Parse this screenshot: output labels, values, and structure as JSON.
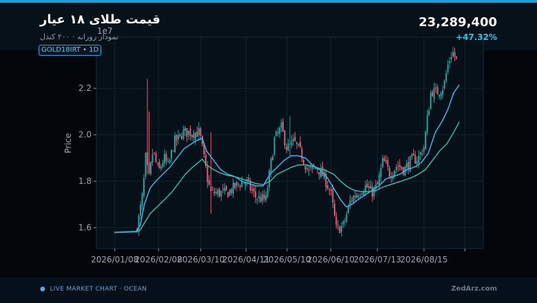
{
  "header": {
    "title": "قیمت طلای ۱۸ عیار",
    "subtitle": "نمودار روزانه · ۲۰۰ کندل",
    "price": "23,289,400",
    "change": "+47.32%",
    "badge": "GOLD18IRT  •  1D"
  },
  "footer": {
    "left": "LIVE MARKET CHART  ·  OCEAN",
    "right": "ZedArz.com"
  },
  "colors": {
    "up": "#26a6a0",
    "down": "#e0607a",
    "ma_fast": "#33b8ee",
    "ma_slow": "#2fc7b4",
    "grid": "#16232e",
    "axis_text": "#9aa7b3"
  },
  "chart_data": {
    "type": "candlestick",
    "ylabel": "Price",
    "y_offset_label": "1e7",
    "ylim": [
      1.51,
      2.42
    ],
    "y_ticks": [
      1.6,
      1.8,
      2.0,
      2.2
    ],
    "y_tick_labels": [
      "1.6",
      "1.8",
      "2.0",
      "2.2"
    ],
    "x_tick_labels": [
      "2026/01/08",
      "2026/02/08",
      "2026/03/10",
      "2026/04/11",
      "2026/05/10",
      "2026/06/10",
      "2026/07/13",
      "2026/08/15",
      ""
    ],
    "x_tick_days": [
      0,
      31,
      61,
      93,
      122,
      153,
      186,
      219,
      248
    ],
    "x_range_days": [
      -13,
      261
    ],
    "close_path": [
      [
        0,
        1.58
      ],
      [
        15,
        1.585
      ],
      [
        17,
        1.64
      ],
      [
        20,
        1.75
      ],
      [
        22,
        1.91
      ],
      [
        24,
        1.8
      ],
      [
        27,
        1.93
      ],
      [
        31,
        1.84
      ],
      [
        35,
        1.9
      ],
      [
        38,
        1.86
      ],
      [
        42,
        1.97
      ],
      [
        45,
        1.98
      ],
      [
        48,
        2.01
      ],
      [
        55,
        2.01
      ],
      [
        60,
        2.01
      ],
      [
        66,
        1.8
      ],
      [
        68,
        1.75
      ],
      [
        75,
        1.75
      ],
      [
        80,
        1.75
      ],
      [
        88,
        1.79
      ],
      [
        93,
        1.8
      ],
      [
        100,
        1.73
      ],
      [
        107,
        1.72
      ],
      [
        113,
        1.98
      ],
      [
        118,
        2.03
      ],
      [
        122,
        1.94
      ],
      [
        127,
        1.97
      ],
      [
        132,
        1.92
      ],
      [
        137,
        1.84
      ],
      [
        143,
        1.86
      ],
      [
        148,
        1.82
      ],
      [
        153,
        1.75
      ],
      [
        157,
        1.59
      ],
      [
        162,
        1.61
      ],
      [
        167,
        1.72
      ],
      [
        172,
        1.75
      ],
      [
        178,
        1.78
      ],
      [
        182,
        1.75
      ],
      [
        186,
        1.78
      ],
      [
        190,
        1.89
      ],
      [
        195,
        1.83
      ],
      [
        200,
        1.87
      ],
      [
        205,
        1.85
      ],
      [
        210,
        1.89
      ],
      [
        215,
        1.9
      ],
      [
        219,
        1.95
      ],
      [
        222,
        2.1
      ],
      [
        224,
        2.19
      ],
      [
        228,
        2.18
      ],
      [
        233,
        2.21
      ],
      [
        236,
        2.3
      ],
      [
        239,
        2.36
      ],
      [
        242,
        2.32
      ]
    ],
    "ma_fast_path": [
      [
        0,
        1.58
      ],
      [
        15,
        1.583
      ],
      [
        18,
        1.61
      ],
      [
        21,
        1.7
      ],
      [
        25,
        1.77
      ],
      [
        29,
        1.8
      ],
      [
        34,
        1.83
      ],
      [
        39,
        1.86
      ],
      [
        44,
        1.9
      ],
      [
        49,
        1.94
      ],
      [
        54,
        1.96
      ],
      [
        58,
        1.975
      ],
      [
        62,
        1.985
      ],
      [
        65,
        1.93
      ],
      [
        70,
        1.89
      ],
      [
        75,
        1.85
      ],
      [
        80,
        1.83
      ],
      [
        85,
        1.82
      ],
      [
        90,
        1.8
      ],
      [
        95,
        1.79
      ],
      [
        100,
        1.78
      ],
      [
        105,
        1.78
      ],
      [
        110,
        1.83
      ],
      [
        115,
        1.86
      ],
      [
        120,
        1.89
      ],
      [
        125,
        1.91
      ],
      [
        130,
        1.91
      ],
      [
        135,
        1.9
      ],
      [
        140,
        1.87
      ],
      [
        145,
        1.85
      ],
      [
        150,
        1.82
      ],
      [
        155,
        1.77
      ],
      [
        160,
        1.72
      ],
      [
        164,
        1.69
      ],
      [
        168,
        1.7
      ],
      [
        172,
        1.72
      ],
      [
        177,
        1.74
      ],
      [
        182,
        1.76
      ],
      [
        187,
        1.78
      ],
      [
        192,
        1.81
      ],
      [
        197,
        1.82
      ],
      [
        202,
        1.83
      ],
      [
        207,
        1.85
      ],
      [
        212,
        1.86
      ],
      [
        217,
        1.88
      ],
      [
        222,
        1.92
      ],
      [
        227,
        2.01
      ],
      [
        232,
        2.06
      ],
      [
        236,
        2.11
      ],
      [
        240,
        2.18
      ],
      [
        244,
        2.215
      ]
    ],
    "ma_slow_path": [
      [
        0,
        1.58
      ],
      [
        15,
        1.582
      ],
      [
        18,
        1.59
      ],
      [
        21,
        1.62
      ],
      [
        25,
        1.66
      ],
      [
        30,
        1.69
      ],
      [
        35,
        1.72
      ],
      [
        40,
        1.75
      ],
      [
        45,
        1.79
      ],
      [
        50,
        1.83
      ],
      [
        55,
        1.86
      ],
      [
        60,
        1.885
      ],
      [
        62,
        1.895
      ],
      [
        65,
        1.87
      ],
      [
        70,
        1.85
      ],
      [
        75,
        1.835
      ],
      [
        80,
        1.825
      ],
      [
        85,
        1.82
      ],
      [
        90,
        1.81
      ],
      [
        95,
        1.8
      ],
      [
        100,
        1.79
      ],
      [
        105,
        1.785
      ],
      [
        110,
        1.8
      ],
      [
        115,
        1.83
      ],
      [
        120,
        1.845
      ],
      [
        125,
        1.86
      ],
      [
        130,
        1.87
      ],
      [
        135,
        1.87
      ],
      [
        140,
        1.865
      ],
      [
        145,
        1.855
      ],
      [
        150,
        1.845
      ],
      [
        155,
        1.83
      ],
      [
        160,
        1.8
      ],
      [
        165,
        1.775
      ],
      [
        170,
        1.76
      ],
      [
        175,
        1.755
      ],
      [
        180,
        1.755
      ],
      [
        185,
        1.76
      ],
      [
        190,
        1.775
      ],
      [
        195,
        1.785
      ],
      [
        200,
        1.795
      ],
      [
        205,
        1.805
      ],
      [
        210,
        1.815
      ],
      [
        215,
        1.83
      ],
      [
        220,
        1.85
      ],
      [
        225,
        1.89
      ],
      [
        230,
        1.93
      ],
      [
        235,
        1.96
      ],
      [
        240,
        2.01
      ],
      [
        244,
        2.055
      ]
    ],
    "n_candles": 200,
    "spikes": [
      {
        "day": 23,
        "high": 2.24,
        "low": 1.83
      },
      {
        "day": 24,
        "high": 2.1,
        "low": 1.85
      },
      {
        "day": 68,
        "high": 2.01,
        "low": 1.66
      },
      {
        "day": 124,
        "high": 2.08,
        "low": 1.91
      }
    ]
  }
}
